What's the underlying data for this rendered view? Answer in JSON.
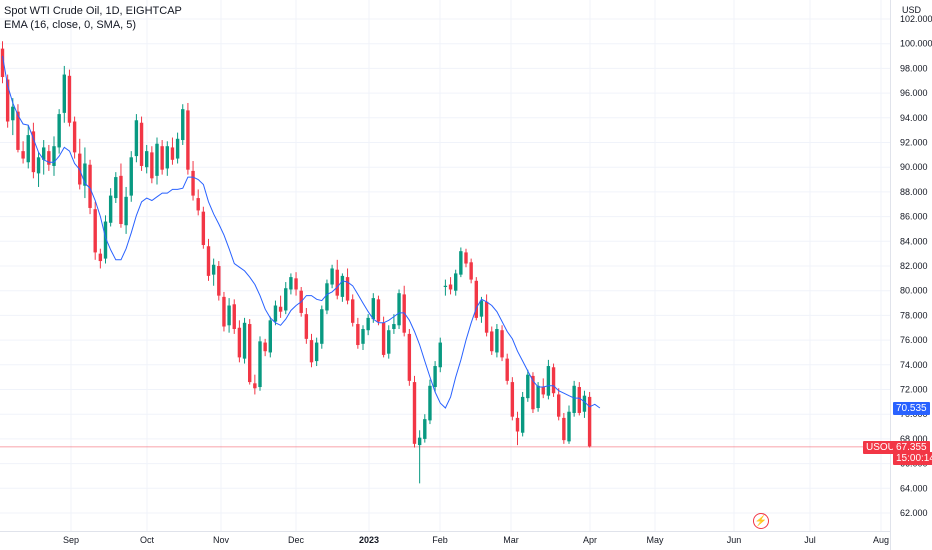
{
  "legend": {
    "symbol_line": "Spot WTI Crude Oil, 1D, EIGHTCAP",
    "indicator_line": "EMA (16, close, 0, SMA, 5)"
  },
  "axis": {
    "currency": "USD",
    "y_ticks": [
      "102.000",
      "100.000",
      "98.000",
      "96.000",
      "94.000",
      "92.000",
      "90.000",
      "88.000",
      "86.000",
      "84.000",
      "82.000",
      "80.000",
      "78.000",
      "76.000",
      "74.000",
      "72.000",
      "70.000",
      "68.000",
      "66.000",
      "64.000",
      "62.000"
    ],
    "x_ticks": [
      "Sep",
      "Oct",
      "Nov",
      "Dec",
      "2023",
      "Feb",
      "Mar",
      "Apr",
      "May",
      "Jun",
      "Jul",
      "Aug"
    ]
  },
  "tags": {
    "ema_value": "70.535",
    "symbol": "USOUSD",
    "price": "67.355",
    "countdown": "15:00:14"
  },
  "colors": {
    "up": "#089981",
    "down": "#f23645",
    "ema": "#2962ff",
    "grid": "#f0f3fa"
  },
  "chart_data": {
    "type": "candlestick",
    "ylim": [
      61,
      103
    ],
    "price_line": 67.355,
    "ema": [
      99,
      96.6,
      95.2,
      94.2,
      93.5,
      93.4,
      92.3,
      91.2,
      90.6,
      90.4,
      90.4,
      90.9,
      91.6,
      91.3,
      90.3,
      89.8,
      88.7,
      88.3,
      87.3,
      86,
      84.3,
      83.3,
      82.5,
      82.5,
      83.4,
      84.7,
      86.1,
      87.2,
      87.5,
      87.3,
      87.6,
      87.9,
      87.9,
      88.2,
      88.2,
      88.3,
      89.2,
      89.2,
      89,
      88.6,
      87.2,
      86.2,
      85.4,
      84.5,
      83.4,
      82.2,
      81.9,
      81.6,
      81.1,
      80.5,
      79.6,
      78.5,
      77.8,
      77.4,
      77.2,
      77.7,
      78.4,
      78.8,
      79.1,
      79.6,
      79.6,
      79.3,
      79.2,
      79.7,
      79.9,
      80.3,
      80.8,
      80.7,
      80.4,
      79.7,
      79,
      78.3,
      77.7,
      77.4,
      77.4,
      77.6,
      77.9,
      78.2,
      78.2,
      77.6,
      76.7,
      75.6,
      74.3,
      73,
      71.8,
      70.9,
      70.5,
      71.4,
      73,
      74.4,
      76,
      77.4,
      78.6,
      79.3,
      79.1,
      78.8,
      78.3,
      77.5,
      76.7,
      76.1,
      75.1,
      74.3,
      73.5,
      72.7,
      72.2,
      72.2,
      72.3,
      72.3,
      71.9,
      71.7,
      71.5,
      71.3,
      71.3,
      71,
      70.6,
      70.8,
      70.5
    ],
    "candles": [
      [
        99.6,
        100.2,
        96.8,
        97.3
      ],
      [
        97.1,
        97.5,
        93.2,
        93.7
      ],
      [
        93.8,
        95.6,
        92.6,
        94.9
      ],
      [
        94.5,
        95.1,
        91.2,
        91.4
      ],
      [
        91.3,
        92.1,
        90.3,
        90.7
      ],
      [
        90.4,
        93.4,
        89.9,
        92.6
      ],
      [
        92.9,
        93.6,
        89.1,
        89.6
      ],
      [
        89.5,
        91.2,
        88.4,
        90.8
      ],
      [
        90.6,
        92.2,
        89.4,
        91.6
      ],
      [
        91.3,
        91.8,
        89.7,
        90.2
      ],
      [
        90.1,
        92.5,
        89.3,
        91.7
      ],
      [
        91.6,
        94.7,
        91.1,
        94.3
      ],
      [
        94.4,
        98.2,
        93.6,
        97.5
      ],
      [
        97.4,
        97.9,
        93.3,
        93.6
      ],
      [
        93.7,
        94.1,
        90.7,
        91.2
      ],
      [
        91.1,
        92.3,
        88.2,
        88.6
      ],
      [
        88.5,
        91.6,
        87.5,
        90.3
      ],
      [
        90.2,
        90.6,
        86.2,
        86.7
      ],
      [
        86.6,
        87.2,
        82.5,
        83.1
      ],
      [
        83,
        83.4,
        81.8,
        82.4
      ],
      [
        82.6,
        86.1,
        82.2,
        85.6
      ],
      [
        85.5,
        88.3,
        85.2,
        87.7
      ],
      [
        87.5,
        89.6,
        87.1,
        89.2
      ],
      [
        89.3,
        90.3,
        85.1,
        85.4
      ],
      [
        85.3,
        88.4,
        84.6,
        87.6
      ],
      [
        87.7,
        91.3,
        87.2,
        90.8
      ],
      [
        90.9,
        94.3,
        90.4,
        93.8
      ],
      [
        93.6,
        94.1,
        89.7,
        90.1
      ],
      [
        90,
        91.8,
        89.5,
        91.3
      ],
      [
        91.2,
        91.7,
        88.7,
        89.1
      ],
      [
        89.3,
        92.4,
        88.6,
        91.9
      ],
      [
        91.7,
        92.2,
        89.4,
        89.8
      ],
      [
        89.9,
        92.1,
        89.3,
        91.7
      ],
      [
        91.6,
        92.4,
        90.2,
        90.6
      ],
      [
        90.7,
        92.8,
        90.3,
        92.3
      ],
      [
        92.2,
        95.1,
        91.8,
        94.7
      ],
      [
        94.6,
        95.2,
        89.4,
        89.8
      ],
      [
        89.7,
        90.5,
        87.3,
        87.7
      ],
      [
        87.5,
        88.2,
        86.1,
        86.5
      ],
      [
        86.4,
        86.8,
        83.4,
        83.7
      ],
      [
        83.6,
        84.2,
        80.8,
        81.2
      ],
      [
        81.3,
        82.6,
        80.4,
        82.1
      ],
      [
        82,
        82.4,
        79.2,
        79.6
      ],
      [
        79.5,
        79.9,
        76.7,
        77.1
      ],
      [
        77.2,
        79.4,
        76.6,
        78.8
      ],
      [
        78.9,
        79.3,
        76.5,
        76.9
      ],
      [
        77,
        77.6,
        74.2,
        74.6
      ],
      [
        74.5,
        77.8,
        74.1,
        77.4
      ],
      [
        77.3,
        77.7,
        72.4,
        72.6
      ],
      [
        72.5,
        73.2,
        71.6,
        72.1
      ],
      [
        72.2,
        76.3,
        71.9,
        75.9
      ],
      [
        75.8,
        76.1,
        74.7,
        75.1
      ],
      [
        75,
        77.9,
        74.6,
        77.6
      ],
      [
        77.5,
        79.2,
        77.2,
        78.8
      ],
      [
        78.7,
        79.6,
        77.8,
        78.3
      ],
      [
        78.4,
        80.7,
        78.1,
        80.2
      ],
      [
        80.1,
        81.4,
        79.7,
        81.1
      ],
      [
        81,
        81.5,
        79.6,
        80.1
      ],
      [
        80,
        80.3,
        77.9,
        78.2
      ],
      [
        78.1,
        78.6,
        75.7,
        76.1
      ],
      [
        76,
        76.5,
        73.8,
        74.2
      ],
      [
        74.3,
        76.2,
        73.9,
        75.8
      ],
      [
        75.7,
        78.8,
        75.3,
        78.5
      ],
      [
        78.4,
        80.9,
        78.1,
        80.6
      ],
      [
        80.5,
        82.1,
        80.2,
        81.8
      ],
      [
        81.7,
        82.5,
        79.3,
        79.6
      ],
      [
        79.5,
        81.4,
        79.1,
        81.2
      ],
      [
        81.1,
        81.8,
        78.9,
        79.2
      ],
      [
        79.3,
        79.7,
        77.1,
        77.4
      ],
      [
        77.3,
        77.8,
        75.3,
        75.6
      ],
      [
        75.7,
        77.2,
        75.2,
        76.9
      ],
      [
        76.8,
        78.1,
        76.4,
        77.8
      ],
      [
        77.7,
        79.8,
        77.4,
        79.4
      ],
      [
        79.3,
        79.6,
        77.2,
        77.5
      ],
      [
        77.4,
        77.9,
        74.6,
        74.8
      ],
      [
        74.9,
        77.2,
        74.5,
        76.8
      ],
      [
        76.9,
        78.1,
        76.5,
        77.3
      ],
      [
        77.2,
        80.1,
        76.9,
        79.8
      ],
      [
        79.7,
        80.4,
        76.3,
        76.6
      ],
      [
        76.5,
        76.9,
        72.3,
        72.7
      ],
      [
        72.6,
        73.1,
        67.3,
        67.6
      ],
      [
        67.5,
        68.7,
        64.4,
        68.1
      ],
      [
        68,
        70,
        67.7,
        69.6
      ],
      [
        69.5,
        72.8,
        69.2,
        72.3
      ],
      [
        72.2,
        74.3,
        71.8,
        73.9
      ],
      [
        73.8,
        76.2,
        73.4,
        75.8
      ],
      [
        80.3,
        80.9,
        79.6,
        80.4
      ],
      [
        80.5,
        81.1,
        79.7,
        80.1
      ],
      [
        80,
        81.7,
        79.6,
        81.4
      ],
      [
        81.3,
        83.5,
        81.1,
        83.2
      ],
      [
        83.1,
        83.4,
        81.9,
        82.2
      ],
      [
        82.3,
        82.6,
        80.6,
        80.9
      ],
      [
        80.8,
        81.1,
        77.6,
        77.8
      ],
      [
        77.9,
        79.5,
        77.4,
        79.2
      ],
      [
        79.1,
        79.7,
        76.3,
        76.6
      ],
      [
        76.7,
        77.1,
        74.8,
        75.1
      ],
      [
        75,
        77.3,
        74.6,
        76.9
      ],
      [
        76.8,
        77.2,
        74.3,
        74.6
      ],
      [
        74.5,
        74.9,
        72.4,
        72.7
      ],
      [
        72.6,
        73,
        69.5,
        69.8
      ],
      [
        69.7,
        70.2,
        67.5,
        68.6
      ],
      [
        68.5,
        71.8,
        68.2,
        71.4
      ],
      [
        71.3,
        73.6,
        71,
        73.2
      ],
      [
        73.1,
        73.4,
        70.1,
        70.4
      ],
      [
        70.5,
        72.6,
        70.2,
        72.3
      ],
      [
        72.2,
        72.9,
        71.3,
        71.6
      ],
      [
        71.5,
        74.4,
        71.2,
        73.9
      ],
      [
        73.8,
        74.1,
        71.4,
        71.7
      ],
      [
        71.6,
        72.1,
        69.5,
        69.8
      ],
      [
        69.7,
        70.1,
        67.6,
        67.9
      ],
      [
        67.8,
        70.7,
        67.6,
        70.2
      ],
      [
        70.1,
        72.7,
        69.8,
        72.3
      ],
      [
        72.2,
        72.6,
        69.9,
        70.1
      ],
      [
        70.2,
        71.9,
        69.7,
        71.5
      ],
      [
        71.4,
        71.8,
        67.3,
        67.4
      ]
    ]
  }
}
